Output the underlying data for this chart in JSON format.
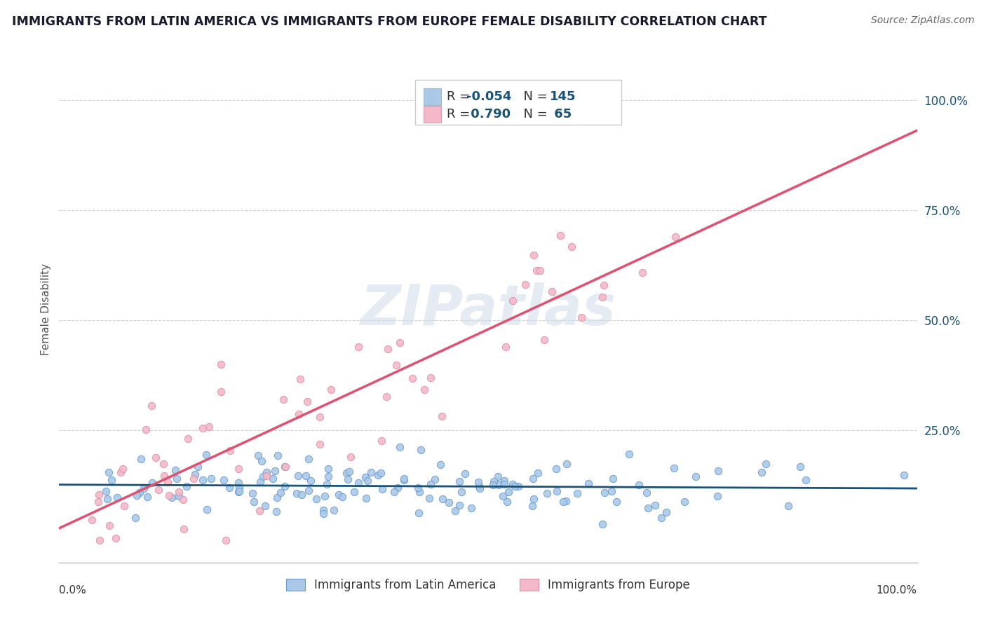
{
  "title": "IMMIGRANTS FROM LATIN AMERICA VS IMMIGRANTS FROM EUROPE FEMALE DISABILITY CORRELATION CHART",
  "source": "Source: ZipAtlas.com",
  "ylabel": "Female Disability",
  "watermark": "ZIPatlas",
  "blue_R": -0.054,
  "blue_N": 145,
  "pink_R": 0.79,
  "pink_N": 65,
  "blue_color": "#aac9e8",
  "blue_edge": "#6699cc",
  "blue_line_color": "#1a5276",
  "pink_color": "#f4b8c8",
  "pink_edge": "#d98fa8",
  "pink_line_color": "#e05070",
  "legend_label_blue": "Immigrants from Latin America",
  "legend_label_pink": "Immigrants from Europe",
  "ytick_labels": [
    "25.0%",
    "50.0%",
    "75.0%",
    "100.0%"
  ],
  "ytick_values": [
    0.25,
    0.5,
    0.75,
    1.0
  ],
  "ymin": -0.05,
  "ymax": 1.1,
  "xmin": 0.0,
  "xmax": 1.0
}
